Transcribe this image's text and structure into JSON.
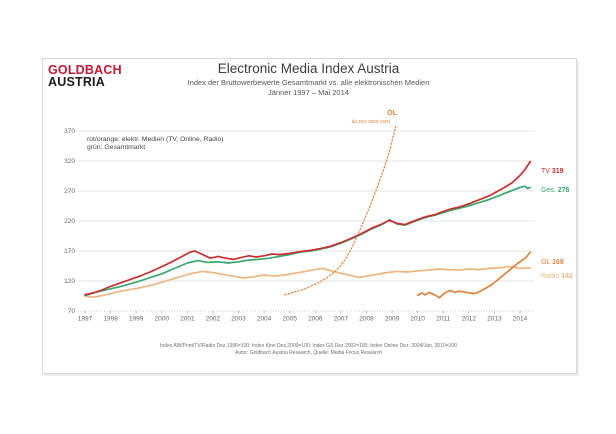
{
  "logo": {
    "line1": "GOLDBACH",
    "line2": "AUSTRIA"
  },
  "header": {
    "title": "Electronic Media Index Austria",
    "subtitle": "Index der Bruttowerbewerte Gesamtmarkt vs. alle elektronischen Medien",
    "period": "Jänner 1997 –  Mai 2014"
  },
  "legend": {
    "line1": "rot/orange: elektr. Medien (TV, Online, Radio)",
    "line2": "grün: Gesamtmarkt"
  },
  "footer": {
    "line1": "Index AW/Print/TV/Radio Dez.1996=100; Index Kino Dez.2000=100; Index GS Dez.2002=100; Index Online Dez. 2004/Jän. 2010=100",
    "line2": "Autor: Goldbach Austria Research, Quelle: Media Focus Research"
  },
  "colors": {
    "logo_red": "#c41933",
    "tv": "#c53030",
    "gesamtmarkt": "#37a76f",
    "online": "#e0813a",
    "radio": "#eab67f",
    "grid": "#e3e3e3",
    "axis_text": "#666666"
  },
  "chart_data": {
    "type": "line",
    "title": "Electronic Media Index Austria",
    "subtitle": "Index der Bruttowerbewerte Gesamtmarkt vs. alle elektronischen Medien, Jänner 1997 – Mai 2014",
    "x_ticks": [
      1997,
      1998,
      1999,
      2000,
      2001,
      2002,
      2003,
      2004,
      2005,
      2006,
      2007,
      2008,
      2009,
      2010,
      2011,
      2012,
      2013,
      2014
    ],
    "y_ticks": [
      370,
      320,
      270,
      220,
      170,
      120,
      70
    ],
    "y_range": [
      70,
      370
    ],
    "x_range": [
      1997,
      2014.42
    ],
    "grid": "horizontal-only",
    "annotation": {
      "label": "OL",
      "note": "bis Dez 2009 (935)"
    },
    "series": [
      {
        "name": "Radio",
        "label": "Radio",
        "color": "#eab67f",
        "style": "solid",
        "end_value": 142,
        "points": [
          [
            1997.0,
            95
          ],
          [
            1997.3,
            93
          ],
          [
            1997.7,
            96
          ],
          [
            1998.0,
            99
          ],
          [
            1998.4,
            103
          ],
          [
            1998.8,
            106
          ],
          [
            1999.2,
            109
          ],
          [
            1999.6,
            113
          ],
          [
            2000.0,
            118
          ],
          [
            2000.4,
            123
          ],
          [
            2000.8,
            128
          ],
          [
            2001.2,
            133
          ],
          [
            2001.6,
            136
          ],
          [
            2002.0,
            134
          ],
          [
            2002.4,
            131
          ],
          [
            2002.8,
            128
          ],
          [
            2003.2,
            125
          ],
          [
            2003.6,
            127
          ],
          [
            2004.0,
            130
          ],
          [
            2004.4,
            128
          ],
          [
            2004.8,
            130
          ],
          [
            2005.2,
            133
          ],
          [
            2005.6,
            136
          ],
          [
            2006.0,
            139
          ],
          [
            2006.3,
            141
          ],
          [
            2006.6,
            137
          ],
          [
            2007.0,
            133
          ],
          [
            2007.4,
            129
          ],
          [
            2007.7,
            126
          ],
          [
            2008.0,
            128
          ],
          [
            2008.4,
            131
          ],
          [
            2008.8,
            134
          ],
          [
            2009.2,
            136
          ],
          [
            2009.6,
            135
          ],
          [
            2010.0,
            137
          ],
          [
            2010.4,
            138
          ],
          [
            2010.8,
            140
          ],
          [
            2011.2,
            139
          ],
          [
            2011.6,
            138
          ],
          [
            2012.0,
            140
          ],
          [
            2012.4,
            139
          ],
          [
            2012.8,
            141
          ],
          [
            2013.2,
            142
          ],
          [
            2013.6,
            144
          ],
          [
            2014.0,
            141
          ],
          [
            2014.4,
            142
          ]
        ]
      },
      {
        "name": "OL (bis Dez 2009, alte Basis)",
        "label": "OL",
        "color": "#e0813a",
        "style": "dotted",
        "end_value": null,
        "points": [
          [
            2004.8,
            97
          ],
          [
            2005.0,
            99
          ],
          [
            2005.2,
            102
          ],
          [
            2005.4,
            104
          ],
          [
            2005.6,
            107
          ],
          [
            2005.8,
            111
          ],
          [
            2006.0,
            115
          ],
          [
            2006.2,
            119
          ],
          [
            2006.4,
            124
          ],
          [
            2006.6,
            130
          ],
          [
            2006.8,
            137
          ],
          [
            2007.0,
            146
          ],
          [
            2007.2,
            158
          ],
          [
            2007.4,
            173
          ],
          [
            2007.6,
            191
          ],
          [
            2007.8,
            211
          ],
          [
            2008.0,
            231
          ],
          [
            2008.2,
            252
          ],
          [
            2008.4,
            274
          ],
          [
            2008.6,
            297
          ],
          [
            2008.8,
            322
          ],
          [
            2008.95,
            345
          ],
          [
            2009.05,
            362
          ],
          [
            2009.15,
            378
          ]
        ]
      },
      {
        "name": "OL",
        "label": "OL",
        "color": "#e0813a",
        "style": "solid",
        "end_value": 168,
        "points": [
          [
            2010.0,
            96
          ],
          [
            2010.15,
            100
          ],
          [
            2010.3,
            97
          ],
          [
            2010.45,
            101
          ],
          [
            2010.6,
            98
          ],
          [
            2010.75,
            95
          ],
          [
            2010.85,
            92
          ],
          [
            2011.0,
            98
          ],
          [
            2011.15,
            102
          ],
          [
            2011.3,
            104
          ],
          [
            2011.45,
            101
          ],
          [
            2011.6,
            103
          ],
          [
            2011.75,
            102
          ],
          [
            2011.9,
            101
          ],
          [
            2012.05,
            100
          ],
          [
            2012.2,
            99
          ],
          [
            2012.35,
            101
          ],
          [
            2012.5,
            104
          ],
          [
            2012.7,
            109
          ],
          [
            2012.9,
            114
          ],
          [
            2013.1,
            121
          ],
          [
            2013.3,
            128
          ],
          [
            2013.5,
            135
          ],
          [
            2013.7,
            142
          ],
          [
            2013.9,
            149
          ],
          [
            2014.1,
            155
          ],
          [
            2014.25,
            160
          ],
          [
            2014.4,
            168
          ]
        ]
      },
      {
        "name": "Gesamtmarkt",
        "label": "Ges.",
        "color": "#37a76f",
        "style": "solid",
        "end_value": 276,
        "points": [
          [
            1997.0,
            96
          ],
          [
            1997.4,
            101
          ],
          [
            1998.0,
            107
          ],
          [
            1998.5,
            112
          ],
          [
            1999.0,
            118
          ],
          [
            1999.5,
            125
          ],
          [
            2000.0,
            132
          ],
          [
            2000.5,
            141
          ],
          [
            2001.0,
            150
          ],
          [
            2001.4,
            154
          ],
          [
            2001.8,
            151
          ],
          [
            2002.2,
            152
          ],
          [
            2002.6,
            150
          ],
          [
            2003.0,
            152
          ],
          [
            2003.4,
            155
          ],
          [
            2003.8,
            156
          ],
          [
            2004.2,
            158
          ],
          [
            2004.6,
            161
          ],
          [
            2005.0,
            164
          ],
          [
            2005.4,
            168
          ],
          [
            2005.8,
            170
          ],
          [
            2006.2,
            173
          ],
          [
            2006.6,
            177
          ],
          [
            2007.0,
            183
          ],
          [
            2007.4,
            190
          ],
          [
            2007.8,
            198
          ],
          [
            2008.2,
            207
          ],
          [
            2008.6,
            214
          ],
          [
            2008.9,
            222
          ],
          [
            2009.2,
            215
          ],
          [
            2009.5,
            213
          ],
          [
            2009.8,
            218
          ],
          [
            2010.1,
            223
          ],
          [
            2010.4,
            227
          ],
          [
            2010.7,
            230
          ],
          [
            2011.0,
            234
          ],
          [
            2011.3,
            238
          ],
          [
            2011.6,
            241
          ],
          [
            2011.9,
            244
          ],
          [
            2012.2,
            248
          ],
          [
            2012.5,
            252
          ],
          [
            2012.8,
            256
          ],
          [
            2013.1,
            261
          ],
          [
            2013.4,
            266
          ],
          [
            2013.7,
            271
          ],
          [
            2014.0,
            276
          ],
          [
            2014.2,
            278
          ],
          [
            2014.3,
            274
          ],
          [
            2014.4,
            276
          ]
        ]
      },
      {
        "name": "TV",
        "label": "TV",
        "color": "#c53030",
        "style": "solid",
        "end_value": 319,
        "points": [
          [
            1997.0,
            97
          ],
          [
            1997.3,
            100
          ],
          [
            1997.6,
            104
          ],
          [
            1998.0,
            111
          ],
          [
            1998.4,
            117
          ],
          [
            1998.8,
            123
          ],
          [
            1999.2,
            129
          ],
          [
            1999.6,
            136
          ],
          [
            2000.0,
            144
          ],
          [
            2000.4,
            152
          ],
          [
            2000.8,
            161
          ],
          [
            2001.1,
            168
          ],
          [
            2001.3,
            170
          ],
          [
            2001.6,
            164
          ],
          [
            2001.9,
            158
          ],
          [
            2002.2,
            161
          ],
          [
            2002.5,
            158
          ],
          [
            2002.8,
            156
          ],
          [
            2003.1,
            159
          ],
          [
            2003.4,
            162
          ],
          [
            2003.7,
            160
          ],
          [
            2004.0,
            162
          ],
          [
            2004.3,
            165
          ],
          [
            2004.6,
            164
          ],
          [
            2005.0,
            166
          ],
          [
            2005.4,
            169
          ],
          [
            2005.8,
            171
          ],
          [
            2006.2,
            174
          ],
          [
            2006.6,
            178
          ],
          [
            2007.0,
            184
          ],
          [
            2007.4,
            191
          ],
          [
            2007.8,
            199
          ],
          [
            2008.2,
            208
          ],
          [
            2008.6,
            215
          ],
          [
            2008.9,
            221
          ],
          [
            2009.2,
            216
          ],
          [
            2009.5,
            214
          ],
          [
            2009.8,
            219
          ],
          [
            2010.1,
            224
          ],
          [
            2010.4,
            228
          ],
          [
            2010.7,
            231
          ],
          [
            2011.0,
            236
          ],
          [
            2011.3,
            240
          ],
          [
            2011.6,
            243
          ],
          [
            2011.9,
            247
          ],
          [
            2012.2,
            252
          ],
          [
            2012.5,
            257
          ],
          [
            2012.8,
            262
          ],
          [
            2013.1,
            269
          ],
          [
            2013.4,
            276
          ],
          [
            2013.7,
            284
          ],
          [
            2014.0,
            296
          ],
          [
            2014.2,
            306
          ],
          [
            2014.4,
            319
          ]
        ]
      }
    ],
    "right_labels": [
      {
        "series": "TV",
        "value": "319",
        "color": "#c53030"
      },
      {
        "series": "Ges.",
        "value": "276",
        "color": "#37a76f"
      },
      {
        "series": "OL",
        "value": "168",
        "color": "#e0813a"
      },
      {
        "series": "Radio",
        "value": "142",
        "color": "#eab67f"
      }
    ],
    "legend": [
      "rot/orange: elektr. Medien (TV, Online, Radio)",
      "grün: Gesamtmarkt"
    ]
  }
}
